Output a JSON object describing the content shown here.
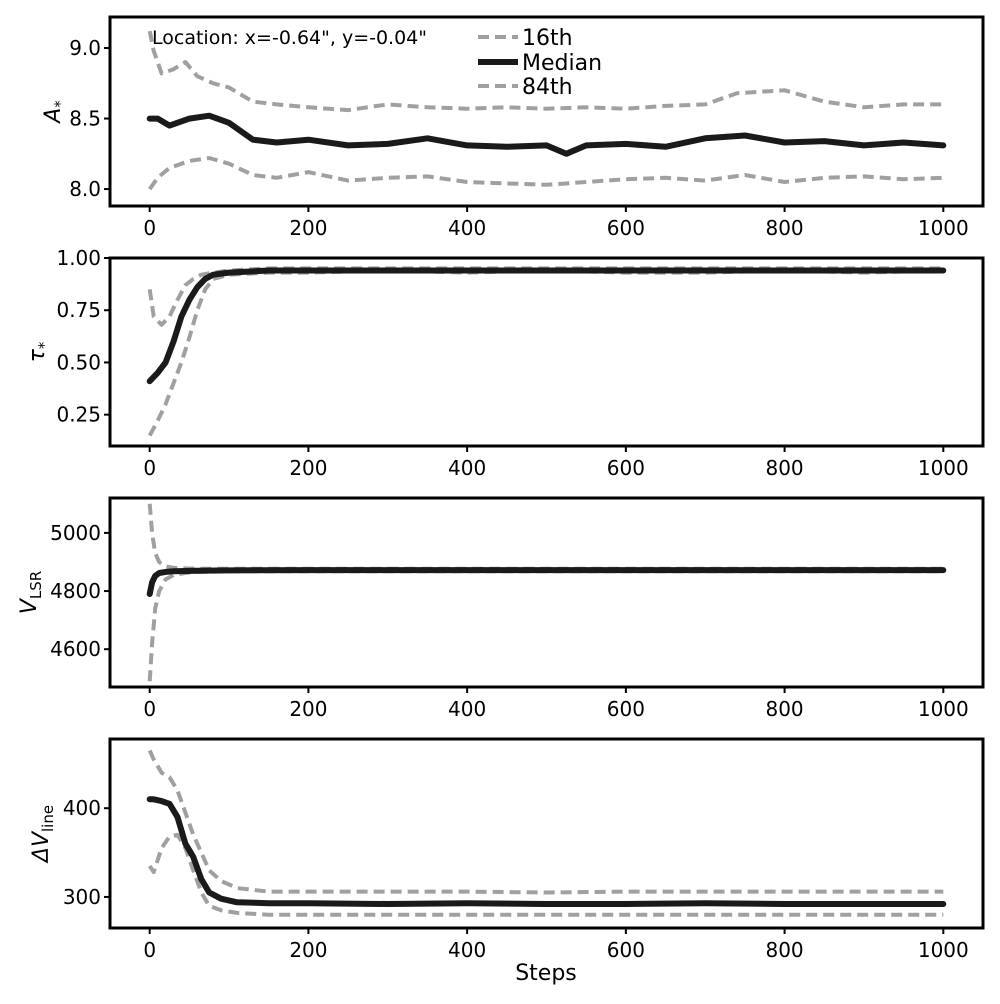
{
  "figure": {
    "annotation": "Location: x=-0.64\", y=-0.04\"",
    "x_axis_title": "Steps",
    "legend": {
      "placement": "top-center",
      "entries": [
        {
          "label": "16th",
          "style": "dashed",
          "color": "#a0a0a0"
        },
        {
          "label": "Median",
          "style": "solid",
          "color": "#1a1a1a"
        },
        {
          "label": "84th",
          "style": "dashed",
          "color": "#a0a0a0"
        }
      ]
    },
    "colors": {
      "median": "#1a1a1a",
      "percentile": "#a0a0a0",
      "axes": "#000000"
    }
  },
  "chart_data": [
    {
      "type": "line",
      "panel": "A_star",
      "ylabel": "A*",
      "ylabel_symbol": "A",
      "ylabel_sub": "*",
      "xlim": [
        -50,
        1050
      ],
      "ylim": [
        7.88,
        9.22
      ],
      "xticks": [
        0,
        200,
        400,
        600,
        800,
        1000
      ],
      "yticks": [
        8.0,
        8.5,
        9.0
      ],
      "ytick_labels": [
        "8.0",
        "8.5",
        "9.0"
      ],
      "grid": false,
      "series": [
        {
          "name": "16th",
          "x": [
            0,
            10,
            25,
            50,
            75,
            100,
            130,
            160,
            200,
            250,
            300,
            350,
            400,
            450,
            500,
            550,
            600,
            650,
            700,
            750,
            800,
            850,
            900,
            950,
            1000
          ],
          "y": [
            8.0,
            8.08,
            8.15,
            8.2,
            8.22,
            8.18,
            8.1,
            8.08,
            8.12,
            8.06,
            8.08,
            8.09,
            8.05,
            8.04,
            8.03,
            8.05,
            8.07,
            8.08,
            8.06,
            8.1,
            8.05,
            8.08,
            8.09,
            8.07,
            8.08
          ]
        },
        {
          "name": "Median",
          "x": [
            0,
            10,
            25,
            50,
            75,
            100,
            130,
            160,
            200,
            250,
            300,
            350,
            400,
            450,
            500,
            525,
            550,
            600,
            650,
            700,
            750,
            800,
            850,
            900,
            950,
            1000
          ],
          "y": [
            8.5,
            8.5,
            8.45,
            8.5,
            8.52,
            8.47,
            8.35,
            8.33,
            8.35,
            8.31,
            8.32,
            8.36,
            8.31,
            8.3,
            8.31,
            8.25,
            8.31,
            8.32,
            8.3,
            8.36,
            8.38,
            8.33,
            8.34,
            8.31,
            8.33,
            8.31
          ]
        },
        {
          "name": "84th",
          "x": [
            0,
            5,
            15,
            30,
            45,
            60,
            80,
            100,
            130,
            160,
            200,
            250,
            300,
            350,
            400,
            450,
            500,
            550,
            600,
            650,
            700,
            740,
            800,
            850,
            900,
            950,
            1000
          ],
          "y": [
            9.12,
            8.98,
            8.82,
            8.85,
            8.9,
            8.8,
            8.75,
            8.72,
            8.62,
            8.6,
            8.58,
            8.56,
            8.6,
            8.58,
            8.57,
            8.58,
            8.57,
            8.58,
            8.57,
            8.59,
            8.6,
            8.68,
            8.7,
            8.62,
            8.58,
            8.6,
            8.6
          ]
        }
      ]
    },
    {
      "type": "line",
      "panel": "tau_star",
      "ylabel": "τ*",
      "ylabel_symbol": "τ",
      "ylabel_sub": "*",
      "xlim": [
        -50,
        1050
      ],
      "ylim": [
        0.1,
        1.0
      ],
      "xticks": [
        0,
        200,
        400,
        600,
        800,
        1000
      ],
      "yticks": [
        0.25,
        0.5,
        0.75,
        1.0
      ],
      "ytick_labels": [
        "0.25",
        "0.50",
        "0.75",
        "1.00"
      ],
      "grid": false,
      "series": [
        {
          "name": "16th",
          "x": [
            0,
            10,
            20,
            30,
            40,
            50,
            60,
            70,
            80,
            100,
            150,
            200,
            300,
            400,
            500,
            600,
            700,
            800,
            900,
            1000
          ],
          "y": [
            0.15,
            0.22,
            0.3,
            0.4,
            0.5,
            0.62,
            0.75,
            0.85,
            0.9,
            0.92,
            0.93,
            0.93,
            0.94,
            0.93,
            0.94,
            0.93,
            0.93,
            0.94,
            0.93,
            0.94
          ]
        },
        {
          "name": "Median",
          "x": [
            0,
            10,
            20,
            30,
            40,
            50,
            60,
            70,
            80,
            100,
            150,
            200,
            300,
            400,
            500,
            600,
            700,
            800,
            900,
            1000
          ],
          "y": [
            0.41,
            0.45,
            0.5,
            0.6,
            0.72,
            0.8,
            0.86,
            0.9,
            0.92,
            0.93,
            0.94,
            0.94,
            0.94,
            0.94,
            0.94,
            0.94,
            0.94,
            0.94,
            0.94,
            0.94
          ]
        },
        {
          "name": "84th",
          "x": [
            0,
            5,
            15,
            25,
            35,
            45,
            55,
            65,
            80,
            100,
            150,
            200,
            300,
            400,
            500,
            600,
            700,
            800,
            900,
            1000
          ],
          "y": [
            0.85,
            0.72,
            0.68,
            0.72,
            0.8,
            0.87,
            0.9,
            0.92,
            0.93,
            0.94,
            0.95,
            0.95,
            0.95,
            0.95,
            0.95,
            0.95,
            0.95,
            0.95,
            0.95,
            0.95
          ]
        }
      ]
    },
    {
      "type": "line",
      "panel": "V_LSR",
      "ylabel": "V_LSR",
      "ylabel_symbol": "V",
      "ylabel_sub": "LSR",
      "xlim": [
        -50,
        1050
      ],
      "ylim": [
        4470,
        5120
      ],
      "xticks": [
        0,
        200,
        400,
        600,
        800,
        1000
      ],
      "yticks": [
        4600,
        4800,
        5000
      ],
      "ytick_labels": [
        "4600",
        "4800",
        "5000"
      ],
      "grid": false,
      "series": [
        {
          "name": "16th",
          "x": [
            0,
            3,
            7,
            12,
            20,
            30,
            45,
            60,
            100,
            200,
            400,
            600,
            800,
            1000
          ],
          "y": [
            4490,
            4620,
            4740,
            4800,
            4840,
            4855,
            4862,
            4866,
            4868,
            4868,
            4868,
            4868,
            4868,
            4868
          ]
        },
        {
          "name": "Median",
          "x": [
            0,
            3,
            7,
            12,
            20,
            30,
            45,
            60,
            100,
            200,
            400,
            600,
            800,
            1000
          ],
          "y": [
            4790,
            4830,
            4852,
            4862,
            4866,
            4868,
            4869,
            4870,
            4871,
            4872,
            4872,
            4872,
            4872,
            4872
          ]
        },
        {
          "name": "84th",
          "x": [
            0,
            3,
            7,
            12,
            20,
            30,
            45,
            60,
            100,
            200,
            400,
            600,
            800,
            1000
          ],
          "y": [
            5100,
            5000,
            4930,
            4900,
            4885,
            4880,
            4878,
            4877,
            4877,
            4877,
            4877,
            4877,
            4877,
            4877
          ]
        }
      ]
    },
    {
      "type": "line",
      "panel": "delta_V_line",
      "ylabel": "ΔV_line",
      "ylabel_symbol": "ΔV",
      "ylabel_sub": "line",
      "xlabel": "Steps",
      "xlim": [
        -50,
        1050
      ],
      "ylim": [
        265,
        478
      ],
      "xticks": [
        0,
        200,
        400,
        600,
        800,
        1000
      ],
      "yticks": [
        300,
        400
      ],
      "ytick_labels": [
        "300",
        "400"
      ],
      "grid": false,
      "series": [
        {
          "name": "16th",
          "x": [
            0,
            5,
            15,
            25,
            35,
            45,
            55,
            65,
            75,
            90,
            110,
            150,
            200,
            300,
            400,
            500,
            600,
            700,
            800,
            900,
            1000
          ],
          "y": [
            335,
            328,
            355,
            368,
            370,
            355,
            330,
            305,
            290,
            285,
            282,
            280,
            280,
            280,
            280,
            280,
            280,
            280,
            280,
            280,
            280
          ]
        },
        {
          "name": "Median",
          "x": [
            0,
            5,
            15,
            25,
            35,
            45,
            55,
            65,
            75,
            90,
            110,
            150,
            200,
            300,
            400,
            500,
            600,
            700,
            800,
            900,
            1000
          ],
          "y": [
            410,
            410,
            408,
            405,
            390,
            360,
            345,
            320,
            305,
            298,
            294,
            293,
            293,
            292,
            293,
            292,
            292,
            293,
            292,
            292,
            292
          ]
        },
        {
          "name": "84th",
          "x": [
            0,
            5,
            15,
            25,
            35,
            45,
            55,
            65,
            75,
            90,
            110,
            150,
            200,
            300,
            400,
            500,
            600,
            700,
            800,
            900,
            1000
          ],
          "y": [
            465,
            455,
            440,
            435,
            420,
            395,
            370,
            350,
            330,
            318,
            310,
            306,
            306,
            306,
            306,
            305,
            306,
            306,
            306,
            306,
            306
          ]
        }
      ]
    }
  ]
}
